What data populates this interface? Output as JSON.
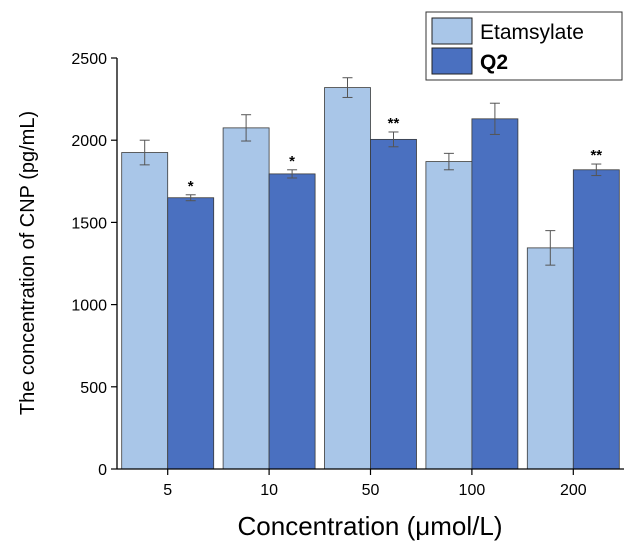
{
  "chart_data": {
    "type": "bar",
    "categories": [
      "5",
      "10",
      "50",
      "100",
      "200"
    ],
    "xlabel": "Concentration (μmol/L)",
    "ylabel": "The concentration of CNP (pg/mL)",
    "ylim": [
      0,
      2500
    ],
    "yticks": [
      0,
      500,
      1000,
      1500,
      2000,
      2500
    ],
    "ytick_labels": [
      "0",
      "500",
      "1000",
      "1500",
      "2000",
      "2500"
    ],
    "grid": false,
    "legend_position": "top-right",
    "series": [
      {
        "name": "Etamsylate",
        "color": "#a9c6e8",
        "values": [
          1925,
          2075,
          2320,
          1870,
          1345
        ],
        "errors": [
          75,
          80,
          60,
          50,
          105
        ],
        "significance": [
          "",
          "",
          "",
          "",
          ""
        ]
      },
      {
        "name": "Q2",
        "color": "#4a70c0",
        "values": [
          1650,
          1795,
          2005,
          2130,
          1820
        ],
        "errors": [
          18,
          25,
          45,
          95,
          35
        ],
        "significance": [
          "*",
          "*",
          "**",
          "",
          "**"
        ]
      }
    ]
  }
}
